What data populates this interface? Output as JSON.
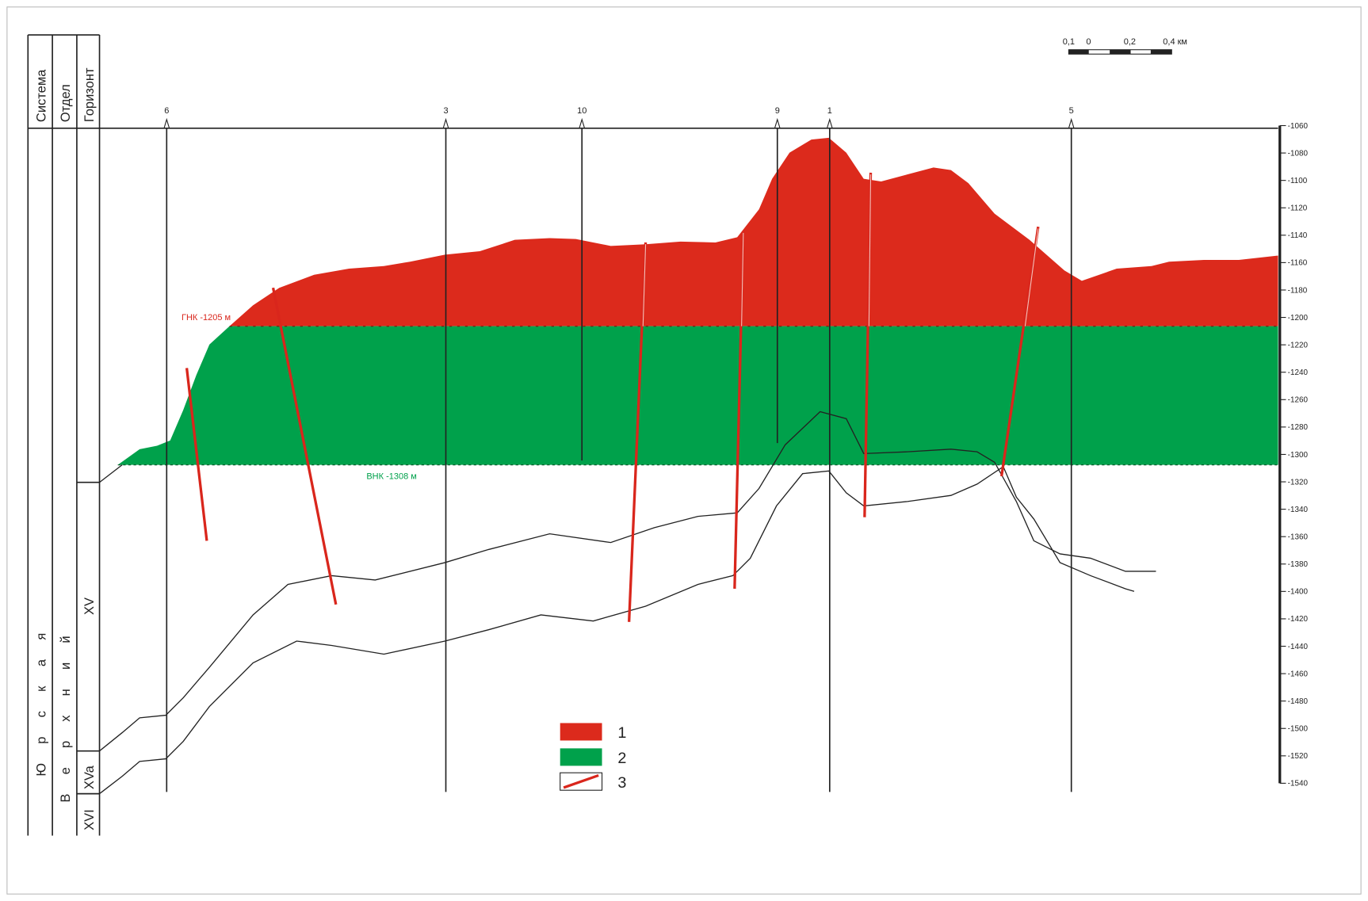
{
  "columns": [
    "Система",
    "Отдел",
    "Горизонт"
  ],
  "system": "Юрская",
  "series": "Верхний",
  "horizons": [
    "XV",
    "XVa",
    "XVI"
  ],
  "wells": [
    "6",
    "3",
    "10",
    "9",
    "1",
    "5"
  ],
  "depth_ticks": [
    -1060,
    -1080,
    -1100,
    -1120,
    -1140,
    -1160,
    -1180,
    -1200,
    -1220,
    -1240,
    -1260,
    -1280,
    -1300,
    -1320,
    -1340,
    -1360,
    -1380,
    -1400,
    -1420,
    -1440,
    -1460,
    -1480,
    -1500,
    -1520,
    -1540
  ],
  "contacts": {
    "gnk": "ГНК -1205 м",
    "vnk": "ВНК -1308 м"
  },
  "scale": [
    "0,1",
    "0",
    "0,2",
    "0,4 км"
  ],
  "legend": [
    "1",
    "2",
    "3"
  ]
}
